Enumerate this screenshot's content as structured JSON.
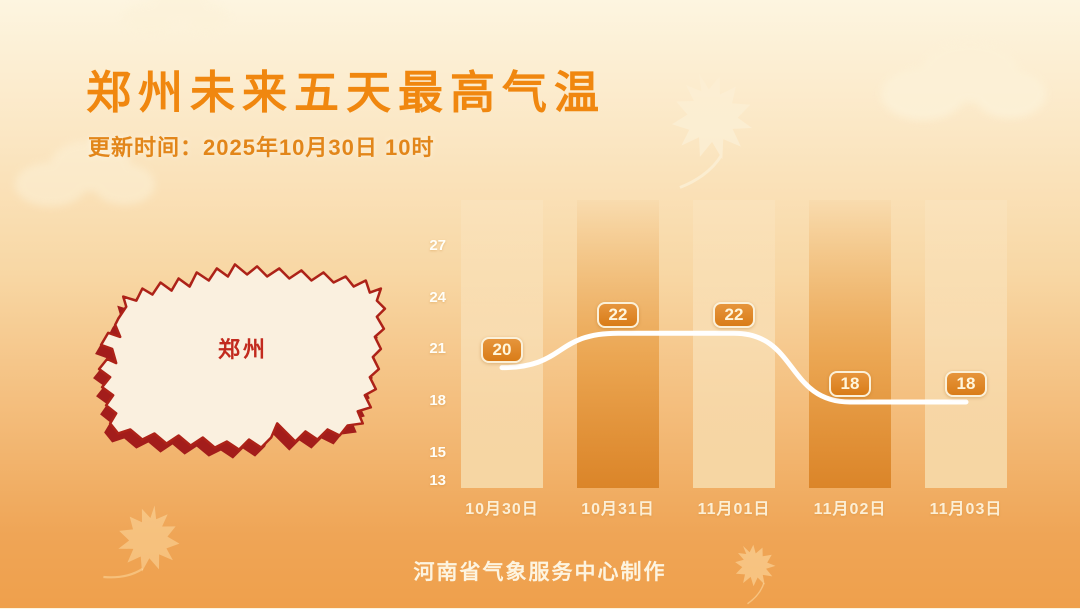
{
  "header": {
    "title": "郑州未来五天最高气温",
    "update_time": "更新时间：2025年10月30日 10时"
  },
  "map": {
    "region_label": "郑州"
  },
  "chart_data": {
    "type": "line",
    "title": "郑州未来五天最高气温",
    "categories": [
      "10月30日",
      "10月31日",
      "11月01日",
      "11月02日",
      "11月03日"
    ],
    "values": [
      20,
      22,
      22,
      18,
      18
    ],
    "yticks": [
      13,
      15,
      18,
      21,
      24,
      27
    ],
    "ylim": [
      13,
      30
    ],
    "grid": false,
    "legend_position": "none",
    "bar_pattern": [
      "light",
      "dark",
      "light",
      "dark",
      "light"
    ],
    "line_color": "#FFFFFF"
  },
  "footer": {
    "credit": "河南省气象服务中心制作"
  },
  "colors": {
    "title_text": "#F0870F",
    "subtitle_text": "#E2861A",
    "axis_text": "#FFFEF8",
    "badge_fill": "#DD7F1C",
    "badge_border": "#FBF0D8",
    "badge_text": "#FFF6DC",
    "map_fill": "#FAF0DF",
    "map_border": "#A8201B",
    "region_label_text": "#C22A1E",
    "background_top": "#FDF5E0",
    "background_bottom": "#EFA04C"
  }
}
